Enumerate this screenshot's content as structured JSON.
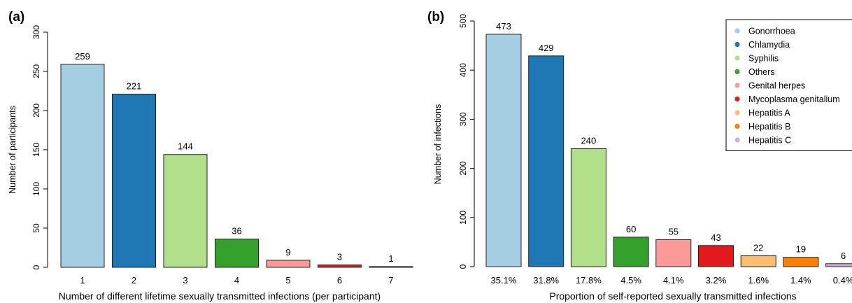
{
  "chart_data": [
    {
      "panel_label": "(a)",
      "type": "bar",
      "xlabel": "Number of different lifetime sexually transmitted infections (per participant)",
      "ylabel": "Number of participants",
      "ylim": [
        0,
        300
      ],
      "yticks": [
        0,
        50,
        100,
        150,
        200,
        250,
        300
      ],
      "grid": false,
      "categories": [
        "1",
        "2",
        "3",
        "4",
        "5",
        "6",
        "7"
      ],
      "values": [
        259,
        221,
        144,
        36,
        9,
        3,
        1
      ],
      "data_labels": [
        "259",
        "221",
        "144",
        "36",
        "9",
        "3",
        "1"
      ],
      "colors": [
        "#a6cee3",
        "#1f78b4",
        "#b2df8a",
        "#33a02c",
        "#fb9a99",
        "#e31a1c",
        "#fdbf6f"
      ]
    },
    {
      "panel_label": "(b)",
      "type": "bar",
      "xlabel": "Proportion of self-reported sexually transmitted infections",
      "ylabel": "Number of infections",
      "ylim": [
        0,
        500
      ],
      "yticks": [
        0,
        100,
        200,
        300,
        400,
        500
      ],
      "grid": false,
      "legend_position": "top-right",
      "categories": [
        "35.1%",
        "31.8%",
        "17.8%",
        "4.5%",
        "4.1%",
        "3.2%",
        "1.6%",
        "1.4%",
        "0.4%"
      ],
      "values": [
        473,
        429,
        240,
        60,
        55,
        43,
        22,
        19,
        6
      ],
      "data_labels": [
        "473",
        "429",
        "240",
        "60",
        "55",
        "43",
        "22",
        "19",
        "6"
      ],
      "legend": [
        "Gonorrhoea",
        "Chlamydia",
        "Syphilis",
        "Others",
        "Genital herpes",
        "Mycoplasma genitalium",
        "Hepatitis A",
        "Hepatitis B",
        "Hepatitis C"
      ],
      "colors": [
        "#a6cee3",
        "#1f78b4",
        "#b2df8a",
        "#33a02c",
        "#fb9a99",
        "#e31a1c",
        "#fdbf6f",
        "#ff7f00",
        "#cab2d6"
      ]
    }
  ]
}
